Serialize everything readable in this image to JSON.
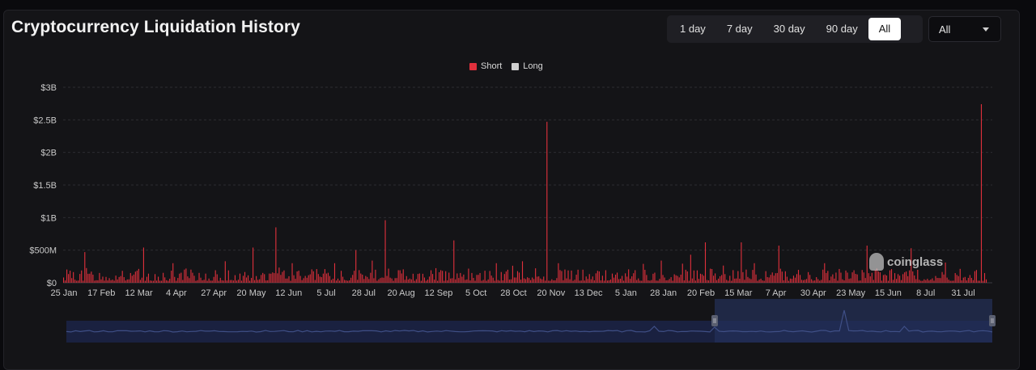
{
  "header": {
    "title": "Cryptocurrency Liquidation History"
  },
  "range_tabs": [
    {
      "label": "1 day",
      "active": false
    },
    {
      "label": "7 day",
      "active": false
    },
    {
      "label": "30 day",
      "active": false
    },
    {
      "label": "90 day",
      "active": false
    },
    {
      "label": "All",
      "active": true
    }
  ],
  "coin_select": {
    "value": "All"
  },
  "watermark": {
    "text": "coinglass"
  },
  "colors": {
    "short": "#e0303c",
    "long": "#cfcfcf",
    "navigator_line": "#3f4f86",
    "navigator_fill": "#1a2140",
    "navigator_selected": "#24305a"
  },
  "chart_data": {
    "type": "bar",
    "title": "Cryptocurrency Liquidation History",
    "legend": {
      "placement": "top-center",
      "entries": [
        "Short",
        "Long"
      ]
    },
    "series": [
      {
        "name": "Short",
        "color": "#e0303c"
      },
      {
        "name": "Long",
        "color": "#cfcfcf"
      }
    ],
    "ylim": [
      0,
      3000000000
    ],
    "y_ticks": [
      {
        "value": 0,
        "label": "$0"
      },
      {
        "value": 500000000,
        "label": "$500M"
      },
      {
        "value": 1000000000,
        "label": "$1B"
      },
      {
        "value": 1500000000,
        "label": "$1.5B"
      },
      {
        "value": 2000000000,
        "label": "$2B"
      },
      {
        "value": 2500000000,
        "label": "$2.5B"
      },
      {
        "value": 3000000000,
        "label": "$3B"
      }
    ],
    "x_tick_labels": [
      "25 Jan",
      "17 Feb",
      "12 Mar",
      "4 Apr",
      "27 Apr",
      "20 May",
      "12 Jun",
      "5 Jul",
      "28 Jul",
      "20 Aug",
      "12 Sep",
      "5 Oct",
      "28 Oct",
      "20 Nov",
      "13 Dec",
      "5 Jan",
      "28 Jan",
      "20 Feb",
      "15 Mar",
      "7 Apr",
      "30 Apr",
      "23 May",
      "15 Jun",
      "8 Jul",
      "31 Jul"
    ],
    "grid": true,
    "notable_values": [
      {
        "x": "early May",
        "value": 850000000
      },
      {
        "x": "mid Jul",
        "value": 960000000
      },
      {
        "x": "early Oct",
        "value": 2470000000
      },
      {
        "x": "early Aug (last)",
        "value": 2740000000
      }
    ]
  }
}
